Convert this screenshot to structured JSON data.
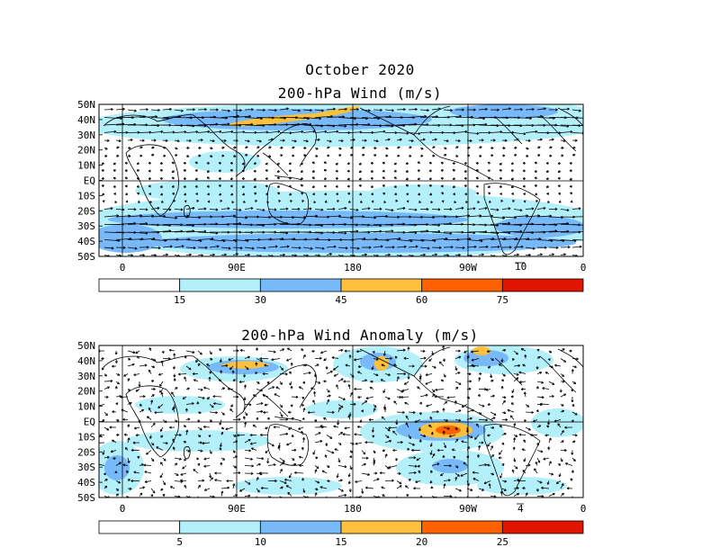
{
  "figure": {
    "title_line1": "October 2020",
    "panels": [
      {
        "id": "mean",
        "title": "200-hPa Wind (m/s)",
        "lat_labels": [
          "50N",
          "40N",
          "30N",
          "20N",
          "10N",
          "EQ",
          "10S",
          "20S",
          "30S",
          "40S",
          "50S"
        ],
        "lon_labels": [
          "0",
          "90E",
          "180",
          "90W",
          "0"
        ],
        "reference_vector": "10",
        "colorbar": {
          "labels": [
            "15",
            "30",
            "45",
            "60",
            "75"
          ],
          "colors": [
            "#ffffff",
            "#b4f0fa",
            "#78b9fa",
            "#ffc03c",
            "#ff6000",
            "#e11400"
          ]
        }
      },
      {
        "id": "anomaly",
        "title": "200-hPa Wind Anomaly (m/s)",
        "lat_labels": [
          "50N",
          "40N",
          "30N",
          "20N",
          "10N",
          "EQ",
          "10S",
          "20S",
          "30S",
          "40S",
          "50S"
        ],
        "lon_labels": [
          "0",
          "90E",
          "180",
          "90W",
          "0"
        ],
        "reference_vector": "4",
        "colorbar": {
          "labels": [
            "5",
            "10",
            "15",
            "20",
            "25"
          ],
          "colors": [
            "#ffffff",
            "#b4f0fa",
            "#78b9fa",
            "#ffc03c",
            "#ff6000",
            "#e11400"
          ]
        }
      }
    ]
  }
}
